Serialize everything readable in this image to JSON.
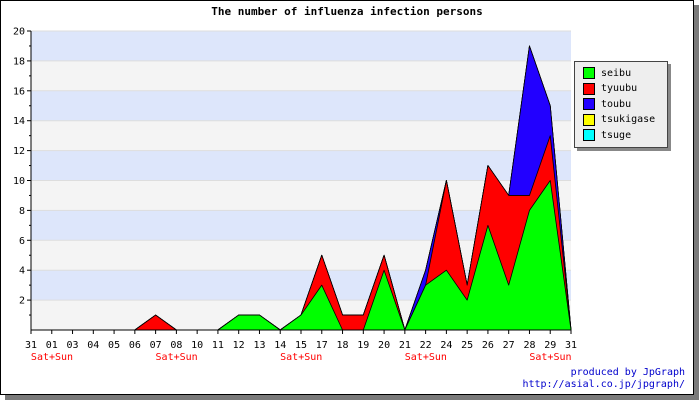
{
  "chart_data": {
    "type": "area",
    "stacked": true,
    "title": "The number of influenza infection persons",
    "categories": [
      "31",
      "01",
      "03",
      "04",
      "05",
      "06",
      "07",
      "08",
      "10",
      "11",
      "12",
      "13",
      "14",
      "15",
      "17",
      "18",
      "19",
      "20",
      "21",
      "22",
      "24",
      "25",
      "26",
      "27",
      "28",
      "29",
      "31"
    ],
    "weekend_marks": [
      {
        "index": 0,
        "label": "Sat+Sun"
      },
      {
        "index": 6,
        "label": "Sat+Sun"
      },
      {
        "index": 12,
        "label": "Sat+Sun"
      },
      {
        "index": 18,
        "label": "Sat+Sun"
      },
      {
        "index": 24,
        "label": "Sat+Sun"
      }
    ],
    "ylim": [
      0,
      20
    ],
    "yticks": [
      2,
      4,
      6,
      8,
      10,
      12,
      14,
      16,
      18,
      20
    ],
    "grid": "horizontal bands",
    "legend_position": "right",
    "series": [
      {
        "name": "seibu",
        "color": "#00ff00",
        "values": [
          0,
          0,
          0,
          0,
          0,
          0,
          0,
          0,
          0,
          0,
          1,
          1,
          0,
          1,
          3,
          0,
          0,
          4,
          0,
          3,
          4,
          2,
          7,
          3,
          8,
          10,
          0
        ]
      },
      {
        "name": "tyuubu",
        "color": "#ff0000",
        "values": [
          0,
          0,
          0,
          0,
          0,
          0,
          1,
          0,
          0,
          0,
          0,
          0,
          0,
          0,
          2,
          1,
          1,
          1,
          0,
          0,
          6,
          1,
          4,
          6,
          1,
          3,
          0
        ]
      },
      {
        "name": "toubu",
        "color": "#2200ff",
        "values": [
          0,
          0,
          0,
          0,
          0,
          0,
          0,
          0,
          0,
          0,
          0,
          0,
          0,
          0,
          0,
          0,
          0,
          0,
          0,
          1,
          0,
          0,
          0,
          0,
          10,
          2,
          0
        ]
      },
      {
        "name": "tsukigase",
        "color": "#ffff00",
        "values": [
          0,
          0,
          0,
          0,
          0,
          0,
          0,
          0,
          0,
          0,
          0,
          0,
          0,
          0,
          0,
          0,
          0,
          0,
          0,
          0,
          0,
          0,
          0,
          0,
          0,
          0,
          0
        ]
      },
      {
        "name": "tsuge",
        "color": "#00ffff",
        "values": [
          0,
          0,
          0,
          0,
          0,
          0,
          0,
          0,
          0,
          0,
          0,
          0,
          0,
          0,
          0,
          0,
          0,
          0,
          0,
          0,
          0,
          0,
          0,
          0,
          0,
          0,
          0
        ]
      }
    ]
  },
  "credits": {
    "line1": "produced by JpGraph",
    "line2": "http://asial.co.jp/jpgraph/"
  }
}
